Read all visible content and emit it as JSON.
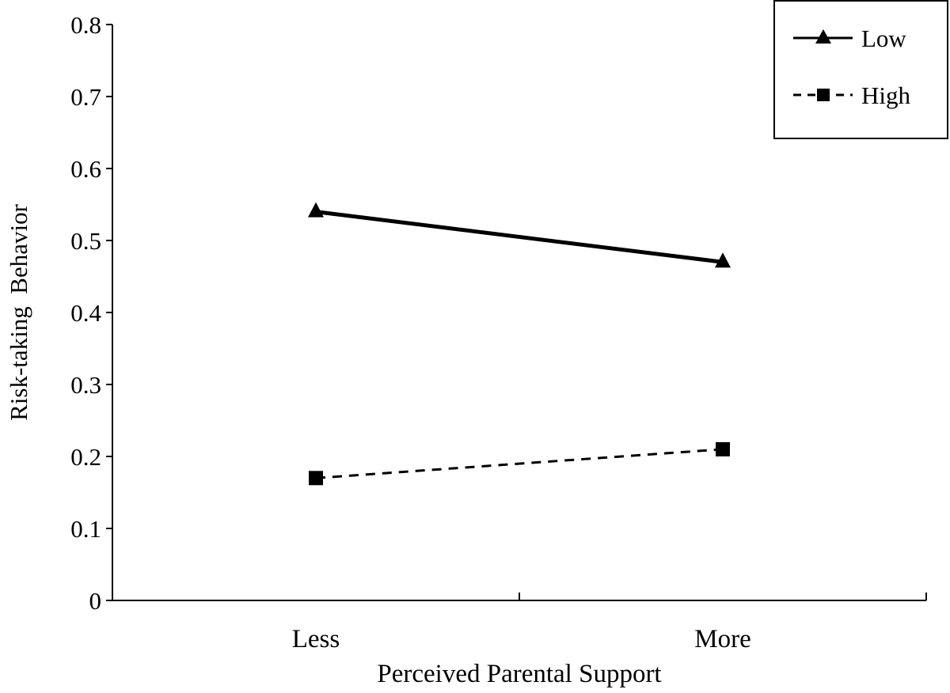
{
  "chart_data": {
    "type": "line",
    "title": "",
    "xlabel": "Perceived Parental Support",
    "ylabel": "Risk-taking  Behavior",
    "categories": [
      "Less",
      "More"
    ],
    "ylim": [
      0,
      0.8
    ],
    "yticks": [
      "0",
      "0.1",
      "0.2",
      "0.3",
      "0.4",
      "0.5",
      "0.6",
      "0.7",
      "0.8"
    ],
    "grid": false,
    "legend_position": "top-right",
    "series": [
      {
        "name": "Low",
        "values": [
          0.54,
          0.47
        ],
        "line": "solid",
        "marker": "triangle",
        "color": "#000000"
      },
      {
        "name": "High",
        "values": [
          0.17,
          0.21
        ],
        "line": "dashed",
        "marker": "square",
        "color": "#000000"
      }
    ]
  }
}
